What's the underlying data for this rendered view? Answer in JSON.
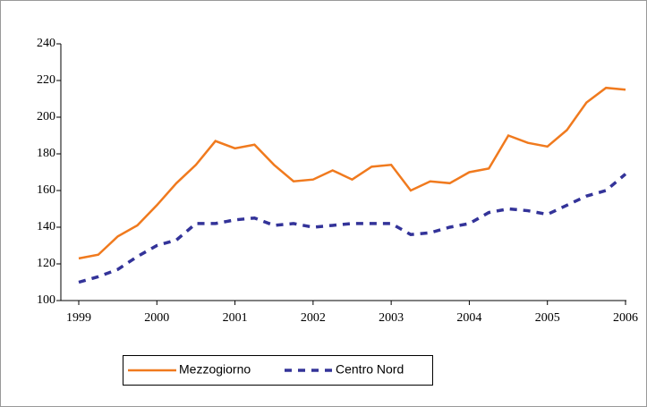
{
  "chart_data": {
    "type": "line",
    "categories": [
      "1999",
      null,
      null,
      null,
      "2000",
      null,
      null,
      null,
      "2001",
      null,
      null,
      null,
      "2002",
      null,
      null,
      null,
      "2003",
      null,
      null,
      null,
      "2004",
      null,
      null,
      null,
      "2005",
      null,
      null,
      null,
      "2006"
    ],
    "series": [
      {
        "name": "Mezzogiorno",
        "color": "#f07a1e",
        "dashed": false,
        "values": [
          123,
          125,
          135,
          141,
          152,
          164,
          174,
          187,
          183,
          185,
          174,
          165,
          166,
          171,
          166,
          173,
          174,
          160,
          165,
          164,
          170,
          172,
          190,
          186,
          184,
          193,
          208,
          216,
          215
        ]
      },
      {
        "name": "Centro Nord",
        "color": "#333399",
        "dashed": true,
        "values": [
          110,
          113,
          117,
          124,
          130,
          133,
          142,
          142,
          144,
          145,
          141,
          142,
          140,
          141,
          142,
          142,
          142,
          136,
          137,
          140,
          142,
          148,
          150,
          149,
          147,
          152,
          157,
          160,
          169
        ]
      }
    ],
    "ylim": [
      100,
      240
    ],
    "yticks": [
      100,
      120,
      140,
      160,
      180,
      200,
      220,
      240
    ],
    "grid": false
  }
}
